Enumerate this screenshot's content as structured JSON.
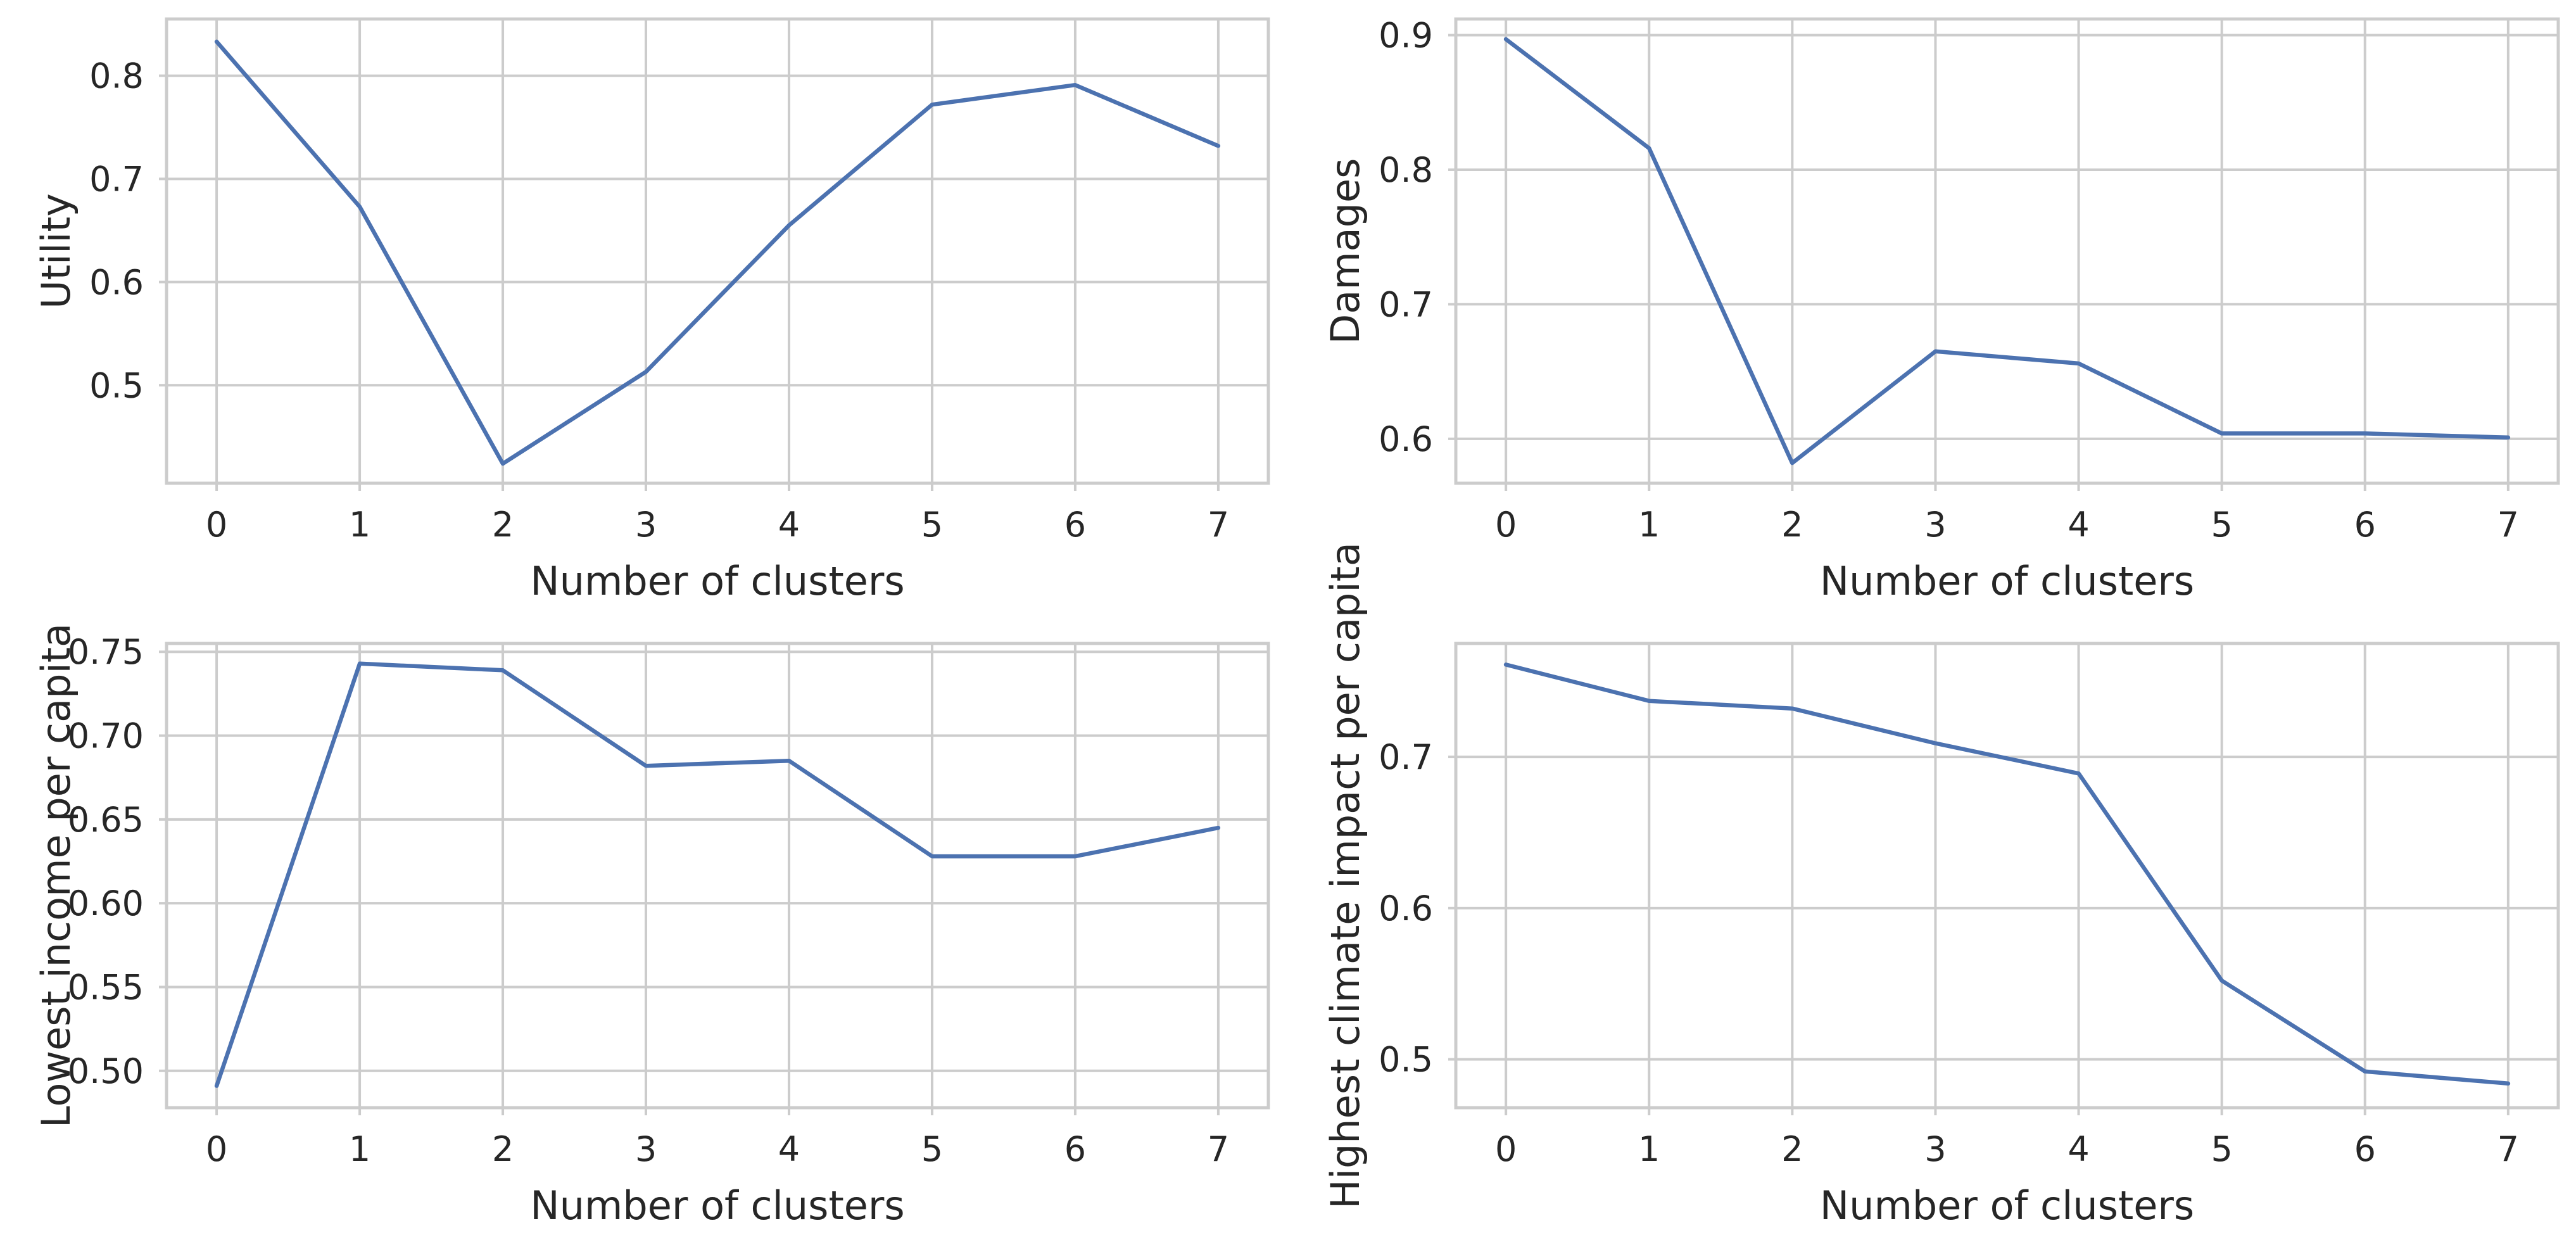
{
  "chart_data": [
    {
      "type": "line",
      "xlabel": "Number of clusters",
      "ylabel": "Utility",
      "x": [
        0,
        1,
        2,
        3,
        4,
        5,
        6,
        7
      ],
      "xticks": [
        "0",
        "1",
        "2",
        "3",
        "4",
        "5",
        "6",
        "7"
      ],
      "xlim": [
        -0.35,
        7.35
      ],
      "ylim": [
        0.405,
        0.855
      ],
      "yticks": [
        0.5,
        0.6,
        0.7,
        0.8
      ],
      "ytick_labels": [
        "0.5",
        "0.6",
        "0.7",
        "0.8"
      ],
      "grid": true,
      "series": [
        {
          "values": [
            0.833,
            0.673,
            0.424,
            0.513,
            0.655,
            0.772,
            0.791,
            0.732
          ],
          "color": "#4c72b0"
        }
      ]
    },
    {
      "type": "line",
      "xlabel": "Number of clusters",
      "ylabel": "Damages",
      "x": [
        0,
        1,
        2,
        3,
        4,
        5,
        6,
        7
      ],
      "xticks": [
        "0",
        "1",
        "2",
        "3",
        "4",
        "5",
        "6",
        "7"
      ],
      "xlim": [
        -0.35,
        7.35
      ],
      "ylim": [
        0.567,
        0.912
      ],
      "yticks": [
        0.6,
        0.7,
        0.8,
        0.9
      ],
      "ytick_labels": [
        "0.6",
        "0.7",
        "0.8",
        "0.9"
      ],
      "grid": true,
      "series": [
        {
          "values": [
            0.897,
            0.816,
            0.582,
            0.665,
            0.656,
            0.604,
            0.604,
            0.601
          ],
          "color": "#4c72b0"
        }
      ]
    },
    {
      "type": "line",
      "xlabel": "Number of clusters",
      "ylabel": "Lowest income per capita",
      "x": [
        0,
        1,
        2,
        3,
        4,
        5,
        6,
        7
      ],
      "xticks": [
        "0",
        "1",
        "2",
        "3",
        "4",
        "5",
        "6",
        "7"
      ],
      "xlim": [
        -0.35,
        7.35
      ],
      "ylim": [
        0.478,
        0.755
      ],
      "yticks": [
        0.5,
        0.55,
        0.6,
        0.65,
        0.7,
        0.75
      ],
      "ytick_labels": [
        "0.50",
        "0.55",
        "0.60",
        "0.65",
        "0.70",
        "0.75"
      ],
      "grid": true,
      "series": [
        {
          "values": [
            0.491,
            0.743,
            0.739,
            0.682,
            0.685,
            0.628,
            0.628,
            0.645
          ],
          "color": "#4c72b0"
        }
      ]
    },
    {
      "type": "line",
      "xlabel": "Number of clusters",
      "ylabel": "Highest climate impact per capita",
      "x": [
        0,
        1,
        2,
        3,
        4,
        5,
        6,
        7
      ],
      "xticks": [
        "0",
        "1",
        "2",
        "3",
        "4",
        "5",
        "6",
        "7"
      ],
      "xlim": [
        -0.35,
        7.35
      ],
      "ylim": [
        0.468,
        0.775
      ],
      "yticks": [
        0.5,
        0.6,
        0.7
      ],
      "ytick_labels": [
        "0.5",
        "0.6",
        "0.7"
      ],
      "grid": true,
      "series": [
        {
          "values": [
            0.761,
            0.737,
            0.732,
            0.709,
            0.689,
            0.552,
            0.492,
            0.484
          ],
          "color": "#4c72b0"
        }
      ]
    }
  ]
}
